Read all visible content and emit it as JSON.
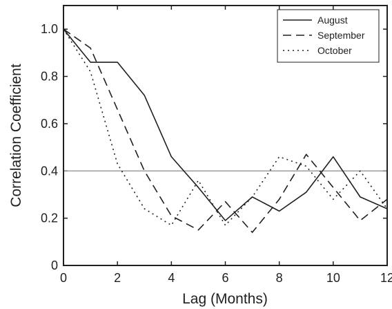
{
  "chart_data": {
    "type": "line",
    "xlabel": "Lag (Months)",
    "ylabel": "Correlation Coefficient",
    "xlim": [
      0,
      12
    ],
    "ylim": [
      0,
      1.1
    ],
    "xticks": [
      0,
      2,
      4,
      6,
      8,
      10,
      12
    ],
    "yticks": [
      0,
      0.2,
      0.4,
      0.6,
      0.8,
      1.0
    ],
    "xtick_labels": [
      "0",
      "2",
      "4",
      "6",
      "8",
      "10",
      "12"
    ],
    "ytick_labels": [
      "0",
      "0.2",
      "0.4",
      "0.6",
      "0.8",
      "1.0"
    ],
    "grid": false,
    "legend_position": "top-right",
    "reference_line": {
      "y": 0.4,
      "color": "#8a8a8a"
    },
    "x": [
      0,
      1,
      2,
      3,
      4,
      5,
      6,
      7,
      8,
      9,
      10,
      11,
      12
    ],
    "series": [
      {
        "name": "August",
        "style": "solid",
        "color": "#1f1f1f",
        "values": [
          1.0,
          0.86,
          0.86,
          0.72,
          0.46,
          0.33,
          0.19,
          0.29,
          0.23,
          0.31,
          0.46,
          0.29,
          0.24
        ]
      },
      {
        "name": "September",
        "style": "dashed",
        "color": "#1f1f1f",
        "values": [
          1.0,
          0.92,
          0.66,
          0.4,
          0.21,
          0.15,
          0.27,
          0.14,
          0.28,
          0.47,
          0.33,
          0.19,
          0.28
        ]
      },
      {
        "name": "October",
        "style": "dotted",
        "color": "#1f1f1f",
        "values": [
          1.0,
          0.82,
          0.43,
          0.24,
          0.17,
          0.36,
          0.17,
          0.29,
          0.46,
          0.42,
          0.28,
          0.4,
          0.24
        ]
      }
    ]
  }
}
